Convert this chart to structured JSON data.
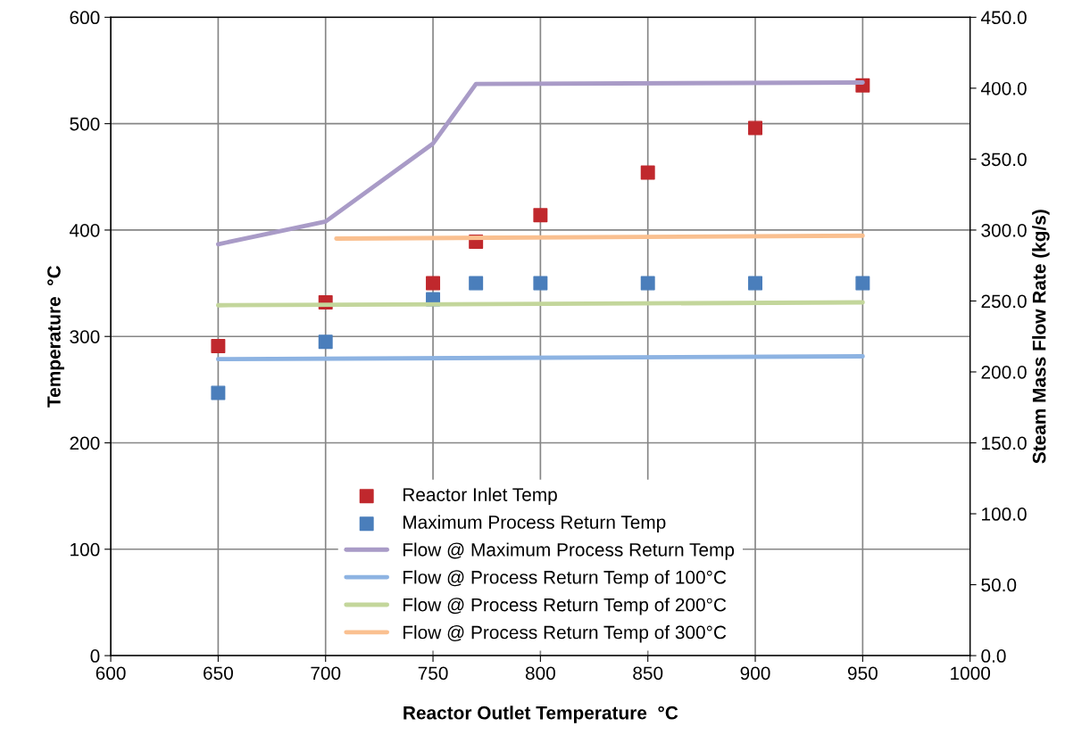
{
  "chart_data": {
    "type": "scatter",
    "xlabel": "Reactor Outlet Temperature  °C",
    "ylabel": "Temperature  °C",
    "y2label": "Steam Mass Flow Rate (kg/s)",
    "xlim": [
      600,
      1000
    ],
    "xticks": [
      600,
      650,
      700,
      750,
      800,
      850,
      900,
      950,
      1000
    ],
    "ylim": [
      0,
      600
    ],
    "yticks": [
      0,
      100,
      200,
      300,
      400,
      500,
      600
    ],
    "y2lim": [
      0,
      450
    ],
    "y2ticks": [
      {
        "value": 0,
        "label": "0.0"
      },
      {
        "value": 50,
        "label": "50.0"
      },
      {
        "value": 100,
        "label": "100.0"
      },
      {
        "value": 150,
        "label": "150.0"
      },
      {
        "value": 200,
        "label": "200.0"
      },
      {
        "value": 250,
        "label": "250.0"
      },
      {
        "value": 300,
        "label": "300.0"
      },
      {
        "value": 350,
        "label": "350.0"
      },
      {
        "value": 400,
        "label": "400.0"
      },
      {
        "value": 450,
        "label": "450.0"
      }
    ],
    "grid": true,
    "legend": "bottom",
    "series": [
      {
        "name": "Reactor Inlet Temp",
        "marker": "square",
        "color": "#c0282d",
        "x": [
          650,
          700,
          750,
          770,
          800,
          850,
          900,
          950
        ],
        "values": [
          291,
          332,
          350,
          389,
          414,
          454,
          496,
          536
        ]
      },
      {
        "name": "Maximum Process Return Temp",
        "marker": "square",
        "color": "#4a7ebb",
        "x": [
          650,
          700,
          750,
          770,
          800,
          850,
          900,
          950
        ],
        "values": [
          247,
          295,
          335,
          350,
          350,
          350,
          350,
          350
        ]
      },
      {
        "name": "Flow @ Maximum Process Return Temp",
        "type": "line",
        "axis": "y2",
        "color": "#a99bc7",
        "x": [
          650,
          700,
          750,
          770,
          950
        ],
        "values": [
          290,
          306,
          361,
          403,
          404
        ]
      },
      {
        "name": "Flow @ Process Return Temp of 100°C",
        "type": "line",
        "axis": "y2",
        "color": "#8db3e2",
        "x": [
          650,
          950
        ],
        "values": [
          209,
          211
        ]
      },
      {
        "name": "Flow @ Process Return Temp of 200°C",
        "type": "line",
        "axis": "y2",
        "color": "#c3d69b",
        "x": [
          650,
          950
        ],
        "values": [
          247,
          249
        ]
      },
      {
        "name": "Flow @ Process Return Temp of 300°C",
        "type": "line",
        "axis": "y2",
        "color": "#fac090",
        "x": [
          705,
          950
        ],
        "values": [
          294,
          296
        ]
      }
    ]
  }
}
